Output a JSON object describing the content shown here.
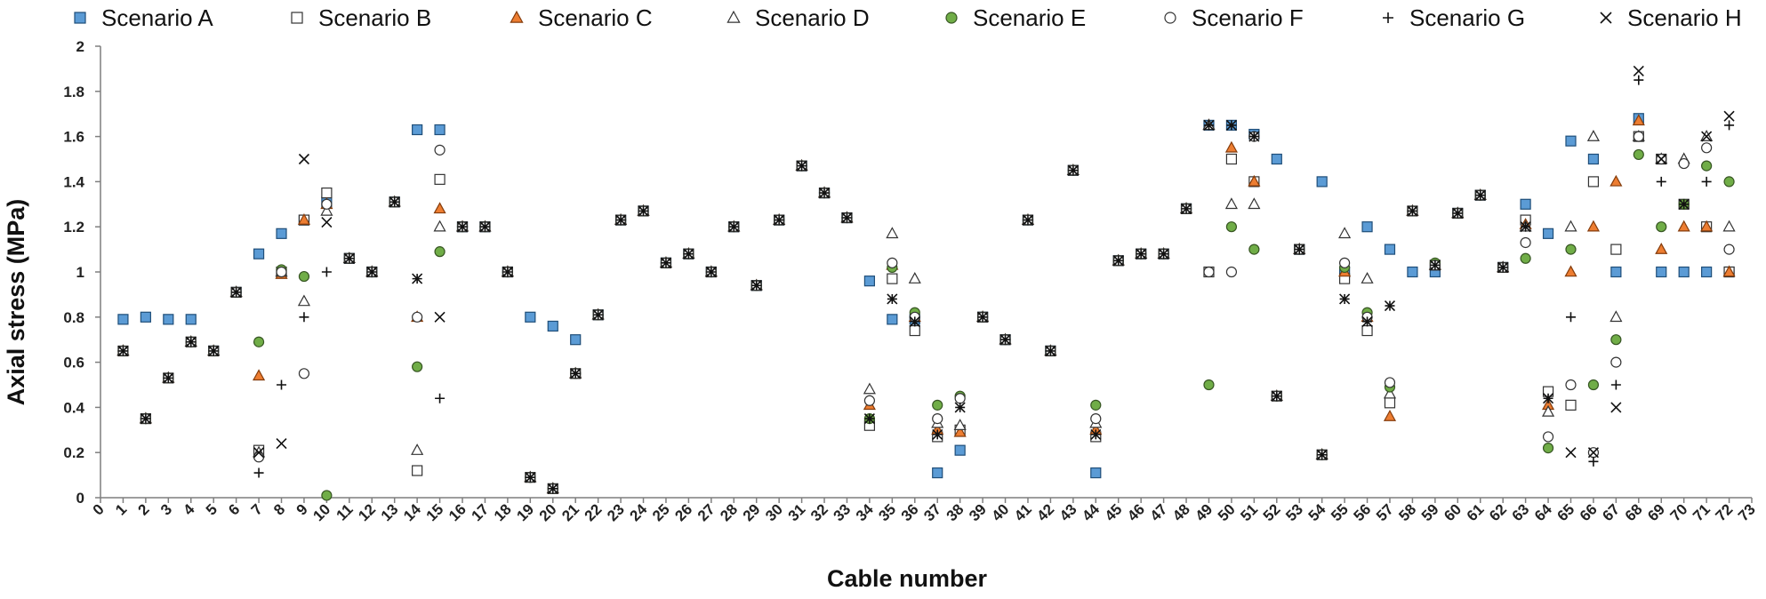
{
  "chart_data": {
    "type": "scatter",
    "xlabel": "Cable number",
    "ylabel": "Axial stress (MPa)",
    "xlim": [
      0,
      73
    ],
    "ylim": [
      0,
      2
    ],
    "x_ticks": [
      "0",
      "1",
      "2",
      "3",
      "4",
      "5",
      "6",
      "7",
      "8",
      "9",
      "10",
      "11",
      "12",
      "13",
      "14",
      "15",
      "16",
      "17",
      "18",
      "19",
      "20",
      "21",
      "22",
      "23",
      "24",
      "25",
      "26",
      "27",
      "28",
      "29",
      "30",
      "31",
      "32",
      "33",
      "34",
      "35",
      "36",
      "37",
      "38",
      "39",
      "40",
      "41",
      "42",
      "43",
      "44",
      "45",
      "46",
      "47",
      "48",
      "49",
      "50",
      "51",
      "52",
      "53",
      "54",
      "55",
      "56",
      "57",
      "58",
      "59",
      "60",
      "61",
      "62",
      "63",
      "64",
      "65",
      "66",
      "67",
      "68",
      "69",
      "70",
      "71",
      "72",
      "73"
    ],
    "y_ticks": [
      "0",
      "0.2",
      "0.4",
      "0.6",
      "0.8",
      "1",
      "1.2",
      "1.4",
      "1.6",
      "1.8",
      "2"
    ],
    "grid": false,
    "legend_position": "top",
    "series": [
      {
        "name": "Scenario A",
        "marker": "square",
        "fill": "#5b9bd5",
        "stroke": "#1f4e79",
        "x": [
          1,
          2,
          3,
          4,
          5,
          6,
          7,
          8,
          9,
          10,
          11,
          12,
          13,
          14,
          15,
          16,
          17,
          18,
          19,
          20,
          21,
          22,
          23,
          24,
          25,
          26,
          27,
          28,
          29,
          30,
          31,
          32,
          33,
          34,
          35,
          36,
          37,
          38,
          39,
          40,
          41,
          42,
          43,
          44,
          45,
          46,
          47,
          48,
          49,
          50,
          51,
          52,
          53,
          54,
          55,
          56,
          57,
          58,
          59,
          60,
          61,
          62,
          63,
          64,
          65,
          66,
          67,
          68,
          69,
          70,
          71,
          72
        ],
        "y": [
          0.79,
          0.8,
          0.79,
          0.79,
          0.65,
          0.91,
          1.08,
          1.17,
          1.23,
          1.31,
          1.06,
          1.0,
          1.31,
          1.63,
          1.63,
          1.2,
          1.2,
          1.0,
          0.8,
          0.76,
          0.7,
          0.81,
          1.23,
          1.27,
          1.04,
          1.08,
          1.0,
          1.2,
          0.94,
          1.23,
          1.47,
          1.35,
          1.24,
          0.96,
          0.79,
          0.79,
          0.11,
          0.21,
          0.8,
          0.7,
          1.23,
          0.65,
          1.45,
          0.11,
          1.05,
          1.08,
          1.08,
          1.28,
          1.65,
          1.65,
          1.61,
          1.5,
          1.1,
          1.4,
          1.0,
          1.2,
          1.1,
          1.0,
          1.0,
          1.26,
          1.34,
          1.02,
          1.3,
          1.17,
          1.58,
          1.5,
          1.0,
          1.68,
          1.0,
          1.0,
          1.0,
          1.0
        ]
      },
      {
        "name": "Scenario B",
        "marker": "square",
        "fill": "#ffffff",
        "stroke": "#333333",
        "x": [
          1,
          2,
          3,
          4,
          5,
          6,
          7,
          8,
          9,
          10,
          11,
          12,
          13,
          14,
          15,
          16,
          17,
          18,
          19,
          20,
          21,
          22,
          23,
          24,
          25,
          26,
          27,
          28,
          29,
          30,
          31,
          32,
          33,
          34,
          35,
          36,
          37,
          38,
          39,
          40,
          41,
          42,
          43,
          44,
          45,
          46,
          47,
          48,
          49,
          50,
          51,
          52,
          53,
          54,
          55,
          56,
          57,
          58,
          59,
          60,
          61,
          62,
          63,
          64,
          65,
          66,
          67,
          68,
          69,
          70,
          71,
          72
        ],
        "y": [
          0.65,
          0.35,
          0.53,
          0.69,
          0.65,
          0.91,
          0.21,
          1.0,
          1.23,
          1.35,
          1.06,
          1.0,
          1.31,
          0.12,
          1.41,
          1.2,
          1.2,
          1.0,
          0.09,
          0.04,
          0.55,
          0.81,
          1.23,
          1.27,
          1.04,
          1.08,
          1.0,
          1.2,
          0.94,
          1.23,
          1.47,
          1.35,
          1.24,
          0.32,
          0.97,
          0.74,
          0.27,
          0.3,
          0.8,
          0.7,
          1.23,
          0.65,
          1.45,
          0.27,
          1.05,
          1.08,
          1.08,
          1.28,
          1.0,
          1.5,
          1.4,
          0.45,
          1.1,
          0.19,
          0.97,
          0.74,
          0.42,
          1.27,
          1.03,
          1.26,
          1.34,
          1.02,
          1.23,
          0.47,
          0.41,
          1.4,
          1.1,
          1.6,
          1.5,
          1.3,
          1.2,
          1.0
        ]
      },
      {
        "name": "Scenario C",
        "marker": "triangle",
        "fill": "#ed7d31",
        "stroke": "#843c0c",
        "x": [
          1,
          2,
          3,
          4,
          5,
          6,
          7,
          8,
          9,
          10,
          11,
          12,
          13,
          14,
          15,
          16,
          17,
          18,
          19,
          20,
          21,
          22,
          23,
          24,
          25,
          26,
          27,
          28,
          29,
          30,
          31,
          32,
          33,
          34,
          35,
          36,
          37,
          38,
          39,
          40,
          41,
          42,
          43,
          44,
          45,
          46,
          47,
          48,
          49,
          50,
          51,
          52,
          53,
          54,
          55,
          56,
          57,
          58,
          59,
          60,
          61,
          62,
          63,
          64,
          65,
          66,
          67,
          68,
          69,
          70,
          71,
          72
        ],
        "y": [
          0.65,
          0.35,
          0.53,
          0.69,
          0.65,
          0.91,
          0.54,
          0.99,
          1.23,
          1.3,
          1.06,
          1.0,
          1.31,
          0.8,
          1.28,
          1.2,
          1.2,
          1.0,
          0.09,
          0.04,
          0.55,
          0.81,
          1.23,
          1.27,
          1.04,
          1.08,
          1.0,
          1.2,
          0.94,
          1.23,
          1.47,
          1.35,
          1.24,
          0.41,
          1.03,
          0.8,
          0.3,
          0.29,
          0.8,
          0.7,
          1.23,
          0.65,
          1.45,
          0.3,
          1.05,
          1.08,
          1.08,
          1.28,
          1.65,
          1.55,
          1.4,
          0.45,
          1.1,
          0.19,
          1.0,
          0.8,
          0.36,
          1.27,
          1.03,
          1.26,
          1.34,
          1.02,
          1.21,
          0.41,
          1.0,
          1.2,
          1.4,
          1.67,
          1.1,
          1.2,
          1.2,
          1.0
        ]
      },
      {
        "name": "Scenario D",
        "marker": "triangle",
        "fill": "#ffffff",
        "stroke": "#333333",
        "x": [
          1,
          2,
          3,
          4,
          5,
          6,
          7,
          8,
          9,
          10,
          11,
          12,
          13,
          14,
          15,
          16,
          17,
          18,
          19,
          20,
          21,
          22,
          23,
          24,
          25,
          26,
          27,
          28,
          29,
          30,
          31,
          32,
          33,
          34,
          35,
          36,
          37,
          38,
          39,
          40,
          41,
          42,
          43,
          44,
          45,
          46,
          47,
          48,
          49,
          50,
          51,
          52,
          53,
          54,
          55,
          56,
          57,
          58,
          59,
          60,
          61,
          62,
          63,
          64,
          65,
          66,
          67,
          68,
          69,
          70,
          71,
          72
        ],
        "y": [
          0.65,
          0.35,
          0.53,
          0.69,
          0.65,
          0.91,
          0.2,
          1.0,
          0.87,
          1.27,
          1.06,
          1.0,
          1.31,
          0.21,
          1.2,
          1.2,
          1.2,
          1.0,
          0.09,
          0.04,
          0.55,
          0.81,
          1.23,
          1.27,
          1.04,
          1.08,
          1.0,
          1.2,
          0.94,
          1.23,
          1.47,
          1.35,
          1.24,
          0.48,
          1.17,
          0.97,
          0.33,
          0.32,
          0.8,
          0.7,
          1.23,
          0.65,
          1.45,
          0.33,
          1.05,
          1.08,
          1.08,
          1.28,
          1.65,
          1.3,
          1.3,
          0.45,
          1.1,
          0.19,
          1.17,
          0.97,
          0.46,
          1.27,
          1.03,
          1.26,
          1.34,
          1.02,
          1.2,
          0.38,
          1.2,
          1.6,
          0.8,
          1.6,
          1.5,
          1.5,
          1.6,
          1.2
        ]
      },
      {
        "name": "Scenario E",
        "marker": "circle",
        "fill": "#70ad47",
        "stroke": "#375623",
        "x": [
          1,
          2,
          3,
          4,
          5,
          6,
          7,
          8,
          9,
          10,
          11,
          12,
          13,
          14,
          15,
          16,
          17,
          18,
          19,
          20,
          21,
          22,
          23,
          24,
          25,
          26,
          27,
          28,
          29,
          30,
          31,
          32,
          33,
          34,
          35,
          36,
          37,
          38,
          39,
          40,
          41,
          42,
          43,
          44,
          45,
          46,
          47,
          48,
          49,
          50,
          51,
          52,
          53,
          54,
          55,
          56,
          57,
          58,
          59,
          60,
          61,
          62,
          63,
          64,
          65,
          66,
          67,
          68,
          69,
          70,
          71,
          72
        ],
        "y": [
          0.65,
          0.35,
          0.53,
          0.69,
          0.65,
          0.91,
          0.69,
          1.01,
          0.98,
          0.01,
          1.06,
          1.0,
          1.31,
          0.58,
          1.09,
          1.2,
          1.2,
          1.0,
          0.09,
          0.04,
          0.55,
          0.81,
          1.23,
          1.27,
          1.04,
          1.08,
          1.0,
          1.2,
          0.94,
          1.23,
          1.47,
          1.35,
          1.24,
          0.35,
          1.02,
          0.82,
          0.41,
          0.45,
          0.8,
          0.7,
          1.23,
          0.65,
          1.45,
          0.41,
          1.05,
          1.08,
          1.08,
          1.28,
          0.5,
          1.2,
          1.1,
          0.45,
          1.1,
          0.19,
          1.02,
          0.82,
          0.49,
          1.27,
          1.04,
          1.26,
          1.34,
          1.02,
          1.06,
          0.22,
          1.1,
          0.5,
          0.7,
          1.52,
          1.2,
          1.3,
          1.47,
          1.4
        ]
      },
      {
        "name": "Scenario F",
        "marker": "circle",
        "fill": "#ffffff",
        "stroke": "#333333",
        "x": [
          1,
          2,
          3,
          4,
          5,
          6,
          7,
          8,
          9,
          10,
          11,
          12,
          13,
          14,
          15,
          16,
          17,
          18,
          19,
          20,
          21,
          22,
          23,
          24,
          25,
          26,
          27,
          28,
          29,
          30,
          31,
          32,
          33,
          34,
          35,
          36,
          37,
          38,
          39,
          40,
          41,
          42,
          43,
          44,
          45,
          46,
          47,
          48,
          49,
          50,
          51,
          52,
          53,
          54,
          55,
          56,
          57,
          58,
          59,
          60,
          61,
          62,
          63,
          64,
          65,
          66,
          67,
          68,
          69,
          70,
          71,
          72
        ],
        "y": [
          0.65,
          0.35,
          0.53,
          0.69,
          0.65,
          0.91,
          0.18,
          1.0,
          0.55,
          1.3,
          1.06,
          1.0,
          1.31,
          0.8,
          1.54,
          1.2,
          1.2,
          1.0,
          0.09,
          0.04,
          0.55,
          0.81,
          1.23,
          1.27,
          1.04,
          1.08,
          1.0,
          1.2,
          0.94,
          1.23,
          1.47,
          1.35,
          1.24,
          0.43,
          1.04,
          0.8,
          0.35,
          0.44,
          0.8,
          0.7,
          1.23,
          0.65,
          1.45,
          0.35,
          1.05,
          1.08,
          1.08,
          1.28,
          1.0,
          1.0,
          1.6,
          0.45,
          1.1,
          0.19,
          1.04,
          0.8,
          0.51,
          1.27,
          1.03,
          1.26,
          1.34,
          1.02,
          1.13,
          0.27,
          0.5,
          0.2,
          0.6,
          1.6,
          1.5,
          1.48,
          1.55,
          1.1
        ]
      },
      {
        "name": "Scenario G",
        "marker": "plus",
        "fill": "none",
        "stroke": "#111111",
        "x": [
          1,
          2,
          3,
          4,
          5,
          6,
          7,
          8,
          9,
          10,
          11,
          12,
          13,
          14,
          15,
          16,
          17,
          18,
          19,
          20,
          21,
          22,
          23,
          24,
          25,
          26,
          27,
          28,
          29,
          30,
          31,
          32,
          33,
          34,
          35,
          36,
          37,
          38,
          39,
          40,
          41,
          42,
          43,
          44,
          45,
          46,
          47,
          48,
          49,
          50,
          51,
          52,
          53,
          54,
          55,
          56,
          57,
          58,
          59,
          60,
          61,
          62,
          63,
          64,
          65,
          66,
          67,
          68,
          69,
          70,
          71,
          72
        ],
        "y": [
          0.65,
          0.35,
          0.53,
          0.69,
          0.65,
          0.91,
          0.11,
          0.5,
          0.8,
          1.0,
          1.06,
          1.0,
          1.31,
          0.97,
          0.44,
          1.2,
          1.2,
          1.0,
          0.09,
          0.04,
          0.55,
          0.81,
          1.23,
          1.27,
          1.04,
          1.08,
          1.0,
          1.2,
          0.94,
          1.23,
          1.47,
          1.35,
          1.24,
          0.35,
          0.88,
          0.78,
          0.28,
          0.4,
          0.8,
          0.7,
          1.23,
          0.65,
          1.45,
          0.28,
          1.05,
          1.08,
          1.08,
          1.28,
          1.65,
          1.65,
          1.6,
          0.45,
          1.1,
          0.19,
          0.88,
          0.78,
          0.85,
          1.27,
          1.03,
          1.26,
          1.34,
          1.02,
          1.2,
          0.44,
          0.8,
          0.16,
          0.5,
          1.85,
          1.4,
          1.3,
          1.4,
          1.65
        ]
      },
      {
        "name": "Scenario H",
        "marker": "x",
        "fill": "none",
        "stroke": "#111111",
        "x": [
          1,
          2,
          3,
          4,
          5,
          6,
          7,
          8,
          9,
          10,
          11,
          12,
          13,
          14,
          15,
          16,
          17,
          18,
          19,
          20,
          21,
          22,
          23,
          24,
          25,
          26,
          27,
          28,
          29,
          30,
          31,
          32,
          33,
          34,
          35,
          36,
          37,
          38,
          39,
          40,
          41,
          42,
          43,
          44,
          45,
          46,
          47,
          48,
          49,
          50,
          51,
          52,
          53,
          54,
          55,
          56,
          57,
          58,
          59,
          60,
          61,
          62,
          63,
          64,
          65,
          66,
          67,
          68,
          69,
          70,
          71,
          72
        ],
        "y": [
          0.65,
          0.35,
          0.53,
          0.69,
          0.65,
          0.91,
          0.2,
          0.24,
          1.5,
          1.22,
          1.06,
          1.0,
          1.31,
          0.97,
          0.8,
          1.2,
          1.2,
          1.0,
          0.09,
          0.04,
          0.55,
          0.81,
          1.23,
          1.27,
          1.04,
          1.08,
          1.0,
          1.2,
          0.94,
          1.23,
          1.47,
          1.35,
          1.24,
          0.35,
          0.88,
          0.78,
          0.28,
          0.4,
          0.8,
          0.7,
          1.23,
          0.65,
          1.45,
          0.28,
          1.05,
          1.08,
          1.08,
          1.28,
          1.65,
          1.65,
          1.6,
          0.45,
          1.1,
          0.19,
          0.88,
          0.78,
          0.85,
          1.27,
          1.03,
          1.26,
          1.34,
          1.02,
          1.2,
          0.44,
          0.2,
          0.2,
          0.4,
          1.89,
          1.5,
          1.3,
          1.6,
          1.69
        ]
      }
    ]
  }
}
